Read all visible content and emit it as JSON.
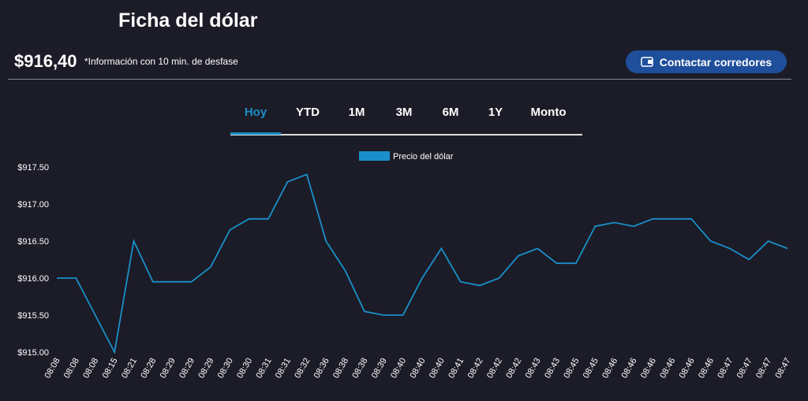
{
  "header": {
    "title": "Ficha del dólar",
    "price": "$916,40",
    "note": "*Información con 10 min. de desfase",
    "button": "Contactar corredores"
  },
  "tabs": {
    "items": [
      "Hoy",
      "YTD",
      "1M",
      "3M",
      "6M",
      "1Y",
      "Monto"
    ],
    "active_index": 0
  },
  "chart_data": {
    "type": "line",
    "categories": [
      "08:08",
      "08:08",
      "08:08",
      "08:15",
      "08:21",
      "08:28",
      "08:29",
      "08:29",
      "08:29",
      "08:30",
      "08:30",
      "08:31",
      "08:31",
      "08:32",
      "08:36",
      "08:38",
      "08:38",
      "08:39",
      "08:40",
      "08:40",
      "08:40",
      "08:41",
      "08:42",
      "08:42",
      "08:42",
      "08:43",
      "08:43",
      "08:45",
      "08:45",
      "08:46",
      "08:46",
      "08:46",
      "08:46",
      "08:46",
      "08:46",
      "08:47",
      "08:47",
      "08:47",
      "08:47"
    ],
    "series": [
      {
        "name": "Precio del dólar",
        "color": "#1a8fc9",
        "values": [
          916.0,
          916.0,
          915.5,
          915.0,
          916.5,
          915.95,
          915.95,
          915.95,
          916.15,
          916.65,
          916.8,
          916.8,
          917.3,
          917.4,
          916.5,
          916.1,
          915.55,
          915.5,
          915.5,
          916.0,
          916.4,
          915.95,
          915.9,
          916.0,
          916.3,
          916.4,
          916.2,
          916.2,
          916.7,
          916.75,
          916.7,
          916.8,
          916.8,
          916.8,
          916.5,
          916.4,
          916.25,
          916.5,
          916.4
        ]
      }
    ],
    "ylim": [
      915.0,
      917.5
    ],
    "yticks": [
      {
        "value": 915.0,
        "label": "$915.00"
      },
      {
        "value": 915.5,
        "label": "$915.50"
      },
      {
        "value": 916.0,
        "label": "$916.00"
      },
      {
        "value": 916.5,
        "label": "$916.50"
      },
      {
        "value": 917.0,
        "label": "$917.00"
      },
      {
        "value": 917.5,
        "label": "$917.50"
      }
    ],
    "grid": false,
    "legend": "top"
  }
}
